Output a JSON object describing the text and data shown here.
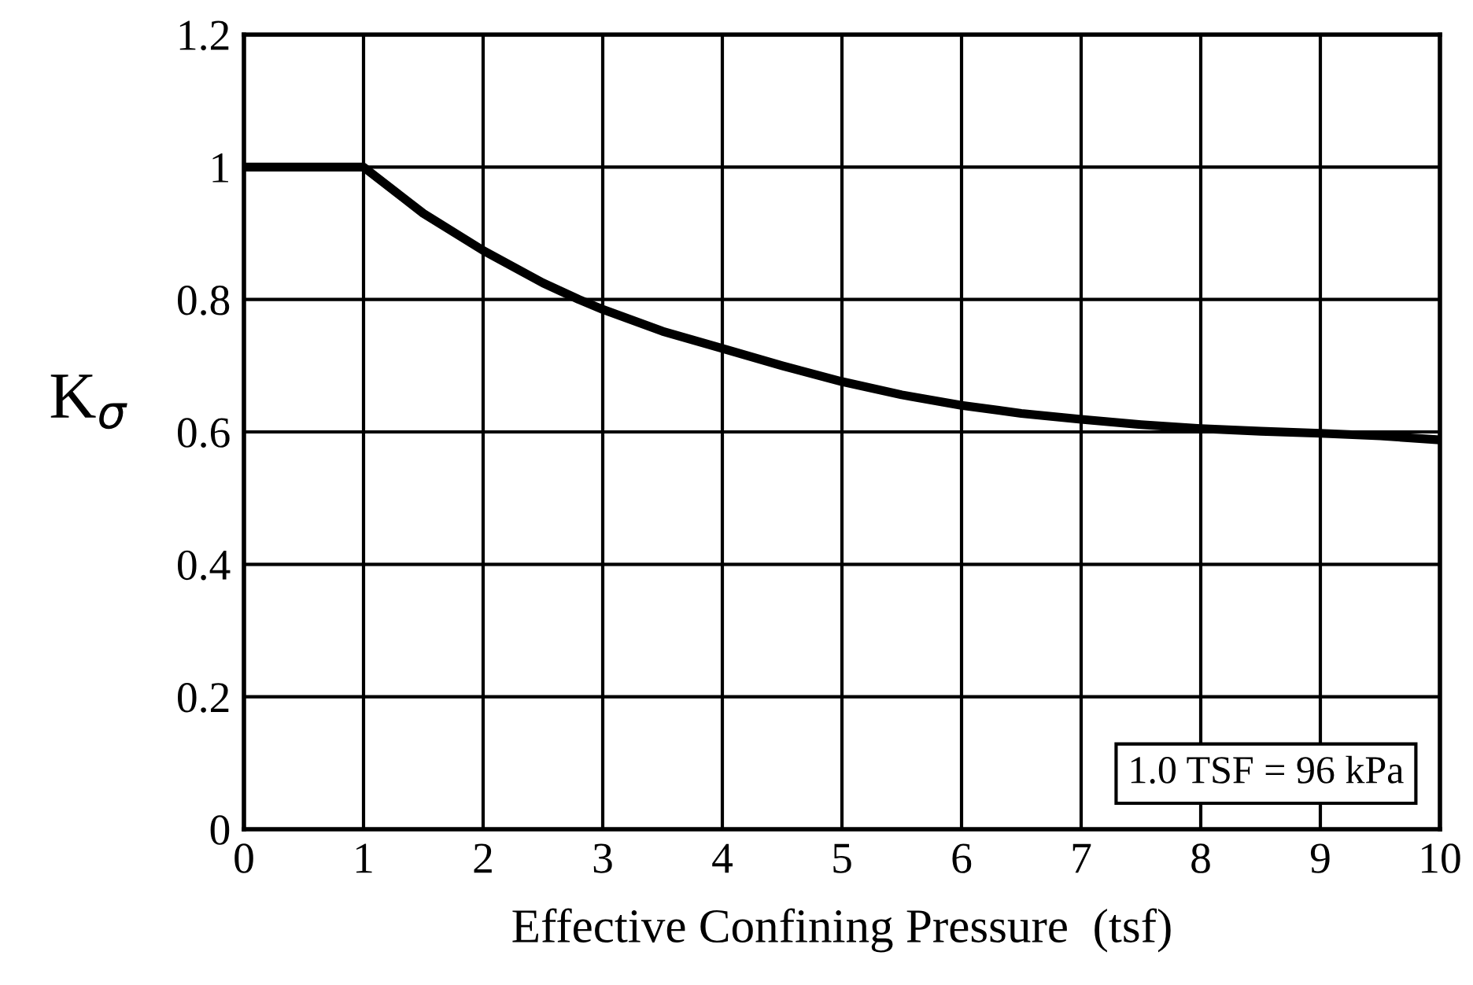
{
  "chart_data": {
    "type": "line",
    "xlabel": "Effective Confining Pressure  (tsf)",
    "ylabel": "K$_{σ}$",
    "x": [
      0,
      1,
      1.5,
      2,
      2.5,
      2.8,
      3,
      3.5,
      4,
      4.5,
      5,
      5.5,
      6,
      6.5,
      7,
      7.5,
      8,
      8.5,
      9,
      9.5,
      10
    ],
    "series": [
      {
        "color": "#000000",
        "values": [
          1.0,
          1.0,
          0.93,
          0.874,
          0.825,
          0.8,
          0.785,
          0.752,
          0.726,
          0.7,
          0.676,
          0.656,
          0.64,
          0.628,
          0.619,
          0.611,
          0.605,
          0.601,
          0.598,
          0.594,
          0.588
        ]
      }
    ],
    "xlim": [
      0,
      10
    ],
    "ylim": [
      0,
      1.2
    ],
    "xticks": [
      0,
      1,
      2,
      3,
      4,
      5,
      6,
      7,
      8,
      9,
      10
    ],
    "yticks": [
      0,
      0.2,
      0.4,
      0.6,
      0.8,
      1,
      1.2
    ],
    "grid": true,
    "marker": "none",
    "line_style": "solid",
    "legend": false,
    "annotations": [
      "1.0 TSF = 96 kPa"
    ]
  }
}
